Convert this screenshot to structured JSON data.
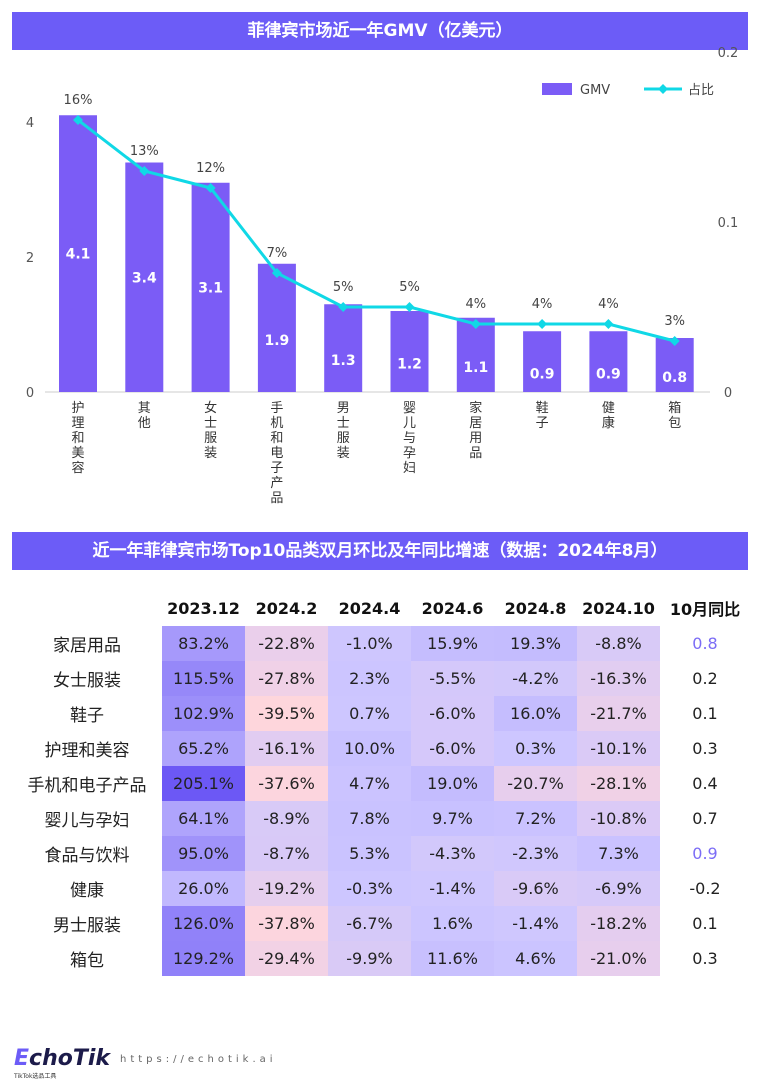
{
  "chart_data": {
    "type": "bar+line",
    "title": "菲律宾市场近一年GMV（亿美元）",
    "categories": [
      "护理和美容",
      "其他",
      "女士服装",
      "手机和电子产品",
      "男士服装",
      "婴儿与孕妇",
      "家居用品",
      "鞋子",
      "健康",
      "箱包"
    ],
    "series": [
      {
        "name": "GMV",
        "type": "bar",
        "axis": "left",
        "values": [
          4.1,
          3.4,
          3.1,
          1.9,
          1.3,
          1.2,
          1.1,
          0.9,
          0.9,
          0.8
        ],
        "labels": [
          "4.1",
          "3.4",
          "3.1",
          "1.9",
          "1.3",
          "1.2",
          "1.1",
          "0.9",
          "0.9",
          "0.8"
        ],
        "color": "#7b5cf6"
      },
      {
        "name": "占比",
        "type": "line",
        "axis": "right",
        "values": [
          0.16,
          0.13,
          0.12,
          0.07,
          0.05,
          0.05,
          0.04,
          0.04,
          0.04,
          0.03
        ],
        "labels": [
          "16%",
          "13%",
          "12%",
          "7%",
          "5%",
          "5%",
          "4%",
          "4%",
          "4%",
          "3%"
        ],
        "color": "#10d8e6"
      }
    ],
    "ylim_left": [
      0,
      5.2
    ],
    "yticks_left": [
      "0",
      "2",
      "4"
    ],
    "ylim_right": [
      0,
      0.2
    ],
    "yticks_right": [
      "0",
      "0.1",
      "0.2"
    ],
    "legend": "top-right",
    "grid": false
  },
  "table": {
    "title": "近一年菲律宾市场Top10品类双月环比及年同比增速（数据：2024年8月）",
    "headers": [
      "",
      "2023.12",
      "2024.2",
      "2024.4",
      "2024.6",
      "2024.8",
      "2024.10",
      "10月同比"
    ],
    "rows": [
      {
        "name": "家居用品",
        "values": [
          83.2,
          -22.8,
          -1.0,
          15.9,
          19.3,
          -8.8
        ],
        "yoy": "0.8",
        "yoy_highlight": true
      },
      {
        "name": "女士服装",
        "values": [
          115.5,
          -27.8,
          2.3,
          -5.5,
          -4.2,
          -16.3
        ],
        "yoy": "0.2"
      },
      {
        "name": "鞋子",
        "values": [
          102.9,
          -39.5,
          0.7,
          -6.0,
          16.0,
          -21.7
        ],
        "yoy": "0.1"
      },
      {
        "name": "护理和美容",
        "values": [
          65.2,
          -16.1,
          10.0,
          -6.0,
          0.3,
          -10.1
        ],
        "yoy": "0.3"
      },
      {
        "name": "手机和电子产品",
        "values": [
          205.1,
          -37.6,
          4.7,
          19.0,
          -20.7,
          -28.1
        ],
        "yoy": "0.4"
      },
      {
        "name": "婴儿与孕妇",
        "values": [
          64.1,
          -8.9,
          7.8,
          9.7,
          7.2,
          -10.8
        ],
        "yoy": "0.7"
      },
      {
        "name": "食品与饮料",
        "values": [
          95.0,
          -8.7,
          5.3,
          -4.3,
          -2.3,
          7.3
        ],
        "yoy": "0.9",
        "yoy_highlight": true
      },
      {
        "name": "健康",
        "values": [
          26.0,
          -19.2,
          -0.3,
          -1.4,
          -9.6,
          -6.9
        ],
        "yoy": "-0.2"
      },
      {
        "name": "男士服装",
        "values": [
          126.0,
          -37.8,
          -6.7,
          1.6,
          -1.4,
          -18.2
        ],
        "yoy": "0.1"
      },
      {
        "name": "箱包",
        "values": [
          129.2,
          -29.4,
          -9.9,
          11.6,
          4.6,
          -21.0
        ],
        "yoy": "0.3"
      }
    ]
  },
  "footer": {
    "logo": "EchoTik",
    "logo_sub": "TikTok选品工具",
    "url": "https://echotik.ai"
  }
}
